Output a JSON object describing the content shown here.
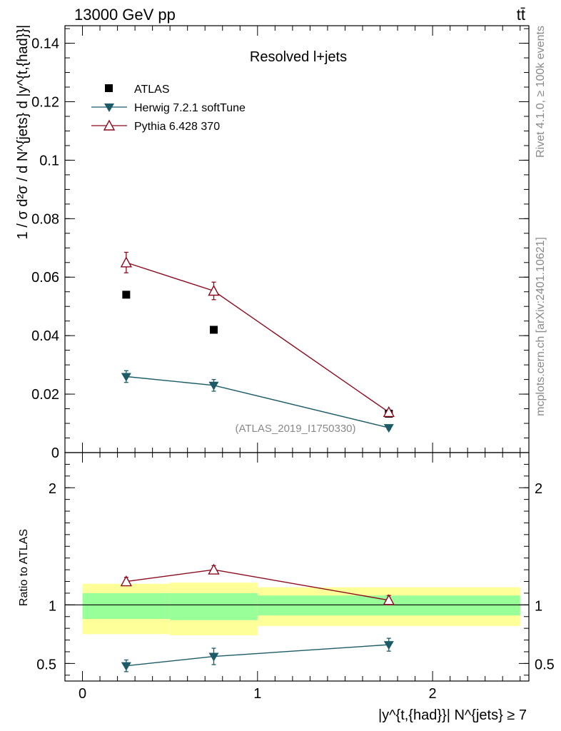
{
  "header": {
    "energy_label": "13000 GeV pp",
    "process_label": "tt̄"
  },
  "side_labels": {
    "rivet": "Rivet 4.1.0, ≥ 100k events",
    "mcplots": "mcplots.cern.ch [arXiv:2401.10621]"
  },
  "colors": {
    "atlas": "#000000",
    "herwig": "#1c5b66",
    "pythia": "#8b0a1e",
    "band_inner": "#99ff99",
    "band_outer": "#ffff99"
  },
  "chart_data": [
    {
      "type": "scatter",
      "title": "Resolved l+jets",
      "watermark": "(ATLAS_2019_I1750330)",
      "ylabel": "1 / σ d²σ / d N^{jets} d |y^{t,{had}}|",
      "xlim": [
        -0.1,
        2.55
      ],
      "ylim": [
        0,
        0.146
      ],
      "yticks": [
        0,
        0.02,
        0.04,
        0.06,
        0.08,
        0.1,
        0.12,
        0.14
      ],
      "ytick_labels": [
        "0",
        "0.02",
        "0.04",
        "0.06",
        "0.08",
        "0.1",
        "0.12",
        "0.14"
      ],
      "series": [
        {
          "name": "ATLAS",
          "marker": "filled-square",
          "x": [
            0.25,
            0.75,
            1.75
          ],
          "y": [
            0.054,
            0.042,
            0.0133
          ]
        },
        {
          "name": "Herwig 7.2.1 softTune",
          "marker": "filled-triangle-down",
          "x": [
            0.25,
            0.75,
            1.75
          ],
          "y": [
            0.026,
            0.023,
            0.0085
          ],
          "yerr": [
            0.002,
            0.002,
            0.0006
          ]
        },
        {
          "name": "Pythia 6.428 370",
          "marker": "open-triangle-up",
          "x": [
            0.25,
            0.75,
            1.75
          ],
          "y": [
            0.065,
            0.0553,
            0.0138
          ],
          "yerr": [
            0.0035,
            0.003,
            0.0008
          ]
        }
      ]
    },
    {
      "type": "line",
      "ylabel": "Ratio to ATLAS",
      "xlabel": "|y^{t,{had}}| N^{jets} ≥ 7",
      "xlim": [
        -0.1,
        2.55
      ],
      "ylim": [
        0.35,
        2.3
      ],
      "xticks": [
        0,
        1,
        2
      ],
      "xtick_labels": [
        "0",
        "1",
        "2"
      ],
      "yticks": [
        0.5,
        1,
        2
      ],
      "ytick_labels": [
        "0.5",
        "1",
        "2"
      ],
      "reference": 1,
      "bands": [
        {
          "x0": 0,
          "x1": 0.5,
          "inner": [
            0.88,
            1.1
          ],
          "outer": [
            0.75,
            1.18
          ]
        },
        {
          "x0": 0.5,
          "x1": 1,
          "inner": [
            0.87,
            1.1
          ],
          "outer": [
            0.74,
            1.19
          ]
        },
        {
          "x0": 1,
          "x1": 2.5,
          "inner": [
            0.91,
            1.08
          ],
          "outer": [
            0.82,
            1.15
          ]
        }
      ],
      "series": [
        {
          "name": "Herwig 7.2.1 softTune",
          "x": [
            0.25,
            0.75,
            1.75
          ],
          "y": [
            0.48,
            0.56,
            0.66
          ],
          "yerr": [
            0.05,
            0.07,
            0.055
          ]
        },
        {
          "name": "Pythia 6.428 370",
          "x": [
            0.25,
            0.75,
            1.75
          ],
          "y": [
            1.2,
            1.3,
            1.04
          ],
          "yerr": [
            0.035,
            0.035,
            0.04
          ]
        }
      ]
    }
  ]
}
